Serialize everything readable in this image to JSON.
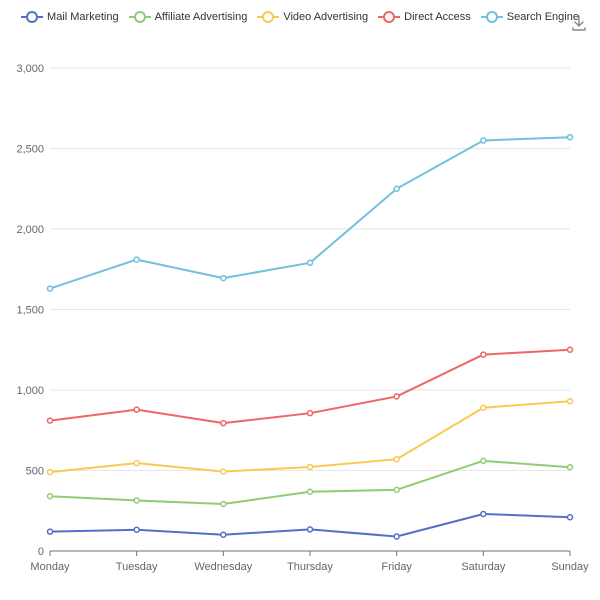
{
  "toolbar": {
    "download_icon": "download-icon"
  },
  "chart_data": {
    "type": "line",
    "categories": [
      "Monday",
      "Tuesday",
      "Wednesday",
      "Thursday",
      "Friday",
      "Saturday",
      "Sunday"
    ],
    "ylim": [
      0,
      3000
    ],
    "yticks": [
      0,
      500,
      1000,
      1500,
      2000,
      2500,
      3000
    ],
    "ytick_labels": [
      "0",
      "500",
      "1,000",
      "1,500",
      "2,000",
      "2,500",
      "3,000"
    ],
    "grid": "horizontal",
    "legend_position": "top-center",
    "series": [
      {
        "name": "Mail Marketing",
        "color": "#5470c6",
        "values": [
          120,
          132,
          101,
          134,
          90,
          230,
          210
        ]
      },
      {
        "name": "Affiliate Advertising",
        "color": "#91cc75",
        "values": [
          340,
          314,
          292,
          368,
          380,
          560,
          520
        ]
      },
      {
        "name": "Video Advertising",
        "color": "#fac858",
        "values": [
          490,
          546,
          493,
          522,
          570,
          890,
          930
        ]
      },
      {
        "name": "Direct Access",
        "color": "#ee6666",
        "values": [
          810,
          878,
          794,
          856,
          960,
          1220,
          1250
        ]
      },
      {
        "name": "Search Engine",
        "color": "#73c0de",
        "values": [
          1630,
          1810,
          1695,
          1790,
          2250,
          2550,
          2570
        ]
      }
    ]
  }
}
